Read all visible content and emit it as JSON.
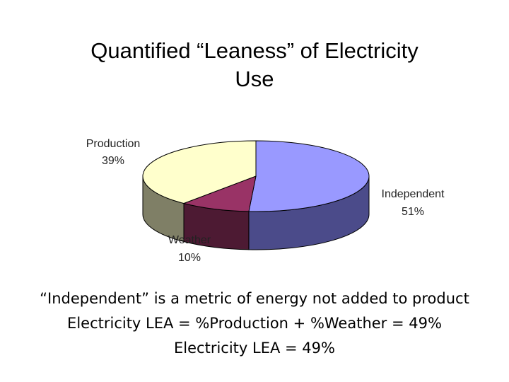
{
  "title": {
    "line1": "Quantified “Leaness” of Electricity",
    "line2": "Use"
  },
  "chart_data": {
    "type": "pie",
    "style": "3d",
    "slices": [
      {
        "name": "Independent",
        "value": 51,
        "label": "Independent",
        "pct_label": "51%",
        "top_color": "#9999ff",
        "side_color": "#4b4b8a"
      },
      {
        "name": "Weather",
        "value": 10,
        "label": "Weather",
        "pct_label": "10%",
        "top_color": "#993366",
        "side_color": "#4d1a33"
      },
      {
        "name": "Production",
        "value": 39,
        "label": "Production",
        "pct_label": "39%",
        "top_color": "#ffffcc",
        "side_color": "#7f7f66"
      }
    ]
  },
  "body": {
    "line1": "“Independent” is a metric of energy not added to product",
    "line2": "Electricity LEA = %Production + %Weather = 49%",
    "line3": "Electricity LEA = 49%"
  }
}
